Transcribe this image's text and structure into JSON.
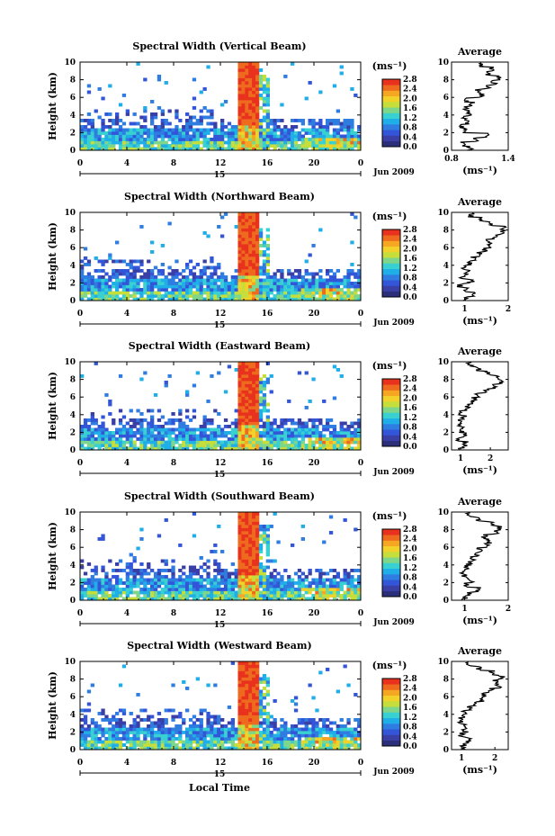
{
  "figure": {
    "x_axis_title": "Local Time",
    "date_label": "Jun 2009",
    "cbar_unit": "(ms⁻¹)",
    "avg_title": "Average",
    "avg_unit": "(ms⁻¹)",
    "y_axis_title": "Height (km)",
    "day_label": "15"
  },
  "colors": {
    "scale": [
      "#2b2f7a",
      "#3a3fa6",
      "#3355d8",
      "#2f7de0",
      "#20aee8",
      "#38d0d0",
      "#7ed68a",
      "#c5de3c",
      "#f2d22a",
      "#f5a623",
      "#ee6a1e",
      "#e8321e"
    ],
    "cbar_ticks": [
      "0.0",
      "0.4",
      "0.8",
      "1.2",
      "1.6",
      "2.0",
      "2.4",
      "2.8"
    ]
  },
  "chart_data": [
    {
      "type": "heatmap",
      "title": "Spectral Width (Vertical Beam)",
      "xlabel": "",
      "ylabel": "Height (km)",
      "x_ticks": [
        "0",
        "4",
        "8",
        "12",
        "16",
        "20",
        "0"
      ],
      "xlim": [
        0,
        24
      ],
      "y_ticks": [
        "0",
        "2",
        "4",
        "6",
        "8",
        "10"
      ],
      "ylim": [
        0,
        10
      ],
      "colorbar": {
        "label": "(ms⁻¹)",
        "range": [
          0.0,
          2.8
        ],
        "ticks": [
          "0.0",
          "0.4",
          "0.8",
          "1.2",
          "1.6",
          "2.0",
          "2.4",
          "2.8"
        ]
      },
      "average": {
        "xlim": [
          0.8,
          1.4
        ],
        "x_ticks": [
          "0.8",
          "1.4"
        ],
        "height": [
          0,
          0.5,
          1,
          1.5,
          2,
          2.5,
          3,
          3.5,
          4,
          4.5,
          5,
          5.5,
          6,
          6.5,
          7,
          7.5,
          8,
          8.5,
          9,
          9.5
        ],
        "values": [
          1.0,
          0.92,
          1.05,
          1.18,
          0.95,
          0.9,
          0.96,
          0.94,
          0.99,
          0.96,
          1.02,
          0.97,
          1.12,
          1.08,
          1.2,
          1.25,
          1.3,
          1.18,
          1.22,
          1.1
        ]
      }
    },
    {
      "type": "heatmap",
      "title": "Spectral Width (Northward Beam)",
      "xlabel": "",
      "ylabel": "Height (km)",
      "x_ticks": [
        "0",
        "4",
        "8",
        "12",
        "16",
        "20",
        "0"
      ],
      "xlim": [
        0,
        24
      ],
      "y_ticks": [
        "0",
        "2",
        "4",
        "6",
        "8",
        "10"
      ],
      "ylim": [
        0,
        10
      ],
      "colorbar": {
        "label": "(ms⁻¹)",
        "range": [
          0.0,
          2.8
        ],
        "ticks": [
          "0.0",
          "0.4",
          "0.8",
          "1.2",
          "1.6",
          "2.0",
          "2.4",
          "2.8"
        ]
      },
      "average": {
        "xlim": [
          0.7,
          2.0
        ],
        "x_ticks": [
          "1",
          "2"
        ],
        "height": [
          0,
          0.5,
          1,
          1.5,
          2,
          2.5,
          3,
          3.5,
          4,
          4.5,
          5,
          5.5,
          6,
          6.5,
          7,
          7.5,
          8,
          8.5,
          9,
          9.5
        ],
        "values": [
          1.0,
          1.2,
          1.05,
          0.9,
          1.15,
          0.95,
          1.05,
          1.0,
          1.1,
          1.2,
          1.35,
          1.45,
          1.6,
          1.55,
          1.7,
          1.85,
          1.9,
          1.6,
          1.4,
          1.15
        ]
      }
    },
    {
      "type": "heatmap",
      "title": "Spectral Width (Eastward Beam)",
      "xlabel": "",
      "ylabel": "Height (km)",
      "x_ticks": [
        "0",
        "4",
        "8",
        "12",
        "16",
        "20",
        "0"
      ],
      "xlim": [
        0,
        24
      ],
      "y_ticks": [
        "0",
        "2",
        "4",
        "6",
        "8",
        "10"
      ],
      "ylim": [
        0,
        10
      ],
      "colorbar": {
        "label": "(ms⁻¹)",
        "range": [
          0.0,
          2.8
        ],
        "ticks": [
          "0.0",
          "0.4",
          "0.8",
          "1.2",
          "1.6",
          "2.0",
          "2.4",
          "2.8"
        ]
      },
      "average": {
        "xlim": [
          0.7,
          2.6
        ],
        "x_ticks": [
          "1",
          "2"
        ],
        "height": [
          0,
          0.5,
          1,
          1.5,
          2,
          2.5,
          3,
          3.5,
          4,
          4.5,
          5,
          5.5,
          6,
          6.5,
          7,
          7.5,
          8,
          8.5,
          9,
          9.5
        ],
        "values": [
          1.0,
          1.15,
          0.95,
          1.2,
          1.05,
          1.0,
          0.95,
          1.1,
          1.05,
          1.2,
          1.3,
          1.45,
          1.6,
          1.9,
          2.1,
          2.35,
          2.2,
          1.9,
          1.6,
          1.3
        ]
      }
    },
    {
      "type": "heatmap",
      "title": "Spectral Width (Southward Beam)",
      "xlabel": "",
      "ylabel": "Height (km)",
      "x_ticks": [
        "0",
        "4",
        "8",
        "12",
        "16",
        "20",
        "0"
      ],
      "xlim": [
        0,
        24
      ],
      "y_ticks": [
        "0",
        "2",
        "4",
        "6",
        "8",
        "10"
      ],
      "ylim": [
        0,
        10
      ],
      "colorbar": {
        "label": "(ms⁻¹)",
        "range": [
          0.0,
          2.8
        ],
        "ticks": [
          "0.0",
          "0.4",
          "0.8",
          "1.2",
          "1.6",
          "2.0",
          "2.4",
          "2.8"
        ]
      },
      "average": {
        "xlim": [
          0.7,
          2.0
        ],
        "x_ticks": [
          "1",
          "2"
        ],
        "height": [
          0,
          0.5,
          1,
          1.5,
          2,
          2.5,
          3,
          3.5,
          4,
          4.5,
          5,
          5.5,
          6,
          6.5,
          7,
          7.5,
          8,
          8.5,
          9,
          9.5
        ],
        "values": [
          1.0,
          1.1,
          1.3,
          1.05,
          1.15,
          1.0,
          0.95,
          1.05,
          1.1,
          1.2,
          1.3,
          1.35,
          1.5,
          1.55,
          1.45,
          1.7,
          1.8,
          1.6,
          1.3,
          1.1
        ]
      }
    },
    {
      "type": "heatmap",
      "title": "Spectral Width (Westward Beam)",
      "xlabel": "Local Time",
      "ylabel": "Height (km)",
      "x_ticks": [
        "0",
        "4",
        "8",
        "12",
        "16",
        "20",
        "0"
      ],
      "xlim": [
        0,
        24
      ],
      "y_ticks": [
        "0",
        "2",
        "4",
        "6",
        "8",
        "10"
      ],
      "ylim": [
        0,
        10
      ],
      "colorbar": {
        "label": "(ms⁻¹)",
        "range": [
          0.0,
          2.8
        ],
        "ticks": [
          "0.0",
          "0.4",
          "0.8",
          "1.2",
          "1.6",
          "2.0",
          "2.4",
          "2.8"
        ]
      },
      "average": {
        "xlim": [
          0.7,
          2.4
        ],
        "x_ticks": [
          "1",
          "2"
        ],
        "height": [
          0,
          0.5,
          1,
          1.5,
          2,
          2.5,
          3,
          3.5,
          4,
          4.5,
          5,
          5.5,
          6,
          6.5,
          7,
          7.5,
          8,
          8.5,
          9,
          9.5
        ],
        "values": [
          1.0,
          1.15,
          1.2,
          1.0,
          1.1,
          1.05,
          0.95,
          1.0,
          1.1,
          1.25,
          1.4,
          1.6,
          1.7,
          1.9,
          2.1,
          2.0,
          2.2,
          1.9,
          1.5,
          1.2
        ]
      }
    }
  ]
}
